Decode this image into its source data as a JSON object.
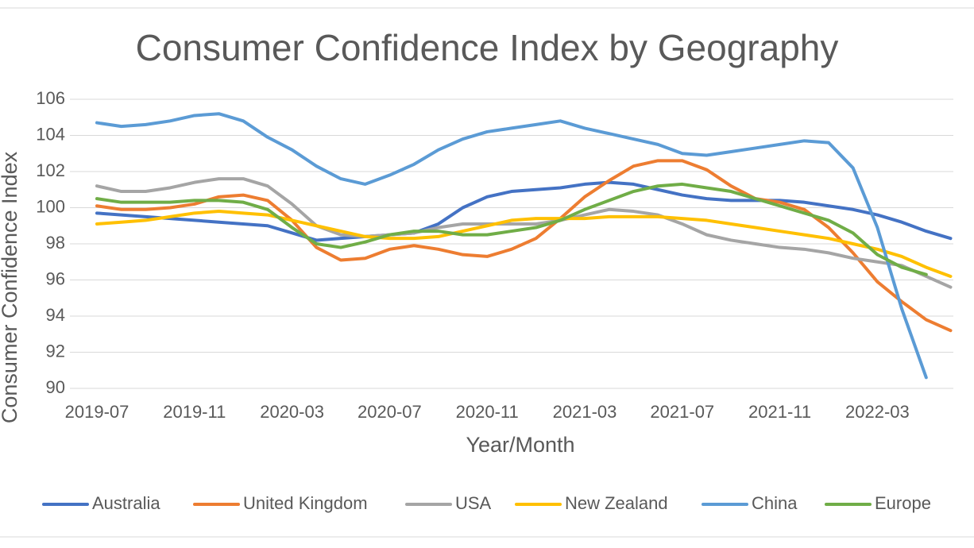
{
  "chart_data": {
    "type": "line",
    "title": "Consumer Confidence Index by Geography",
    "x_label": "Year/Month",
    "y_label": "Consumer Confidence Index",
    "categories": [
      "2019-07",
      null,
      null,
      null,
      "2019-11",
      null,
      null,
      null,
      "2020-03",
      null,
      null,
      null,
      "2020-07",
      null,
      null,
      null,
      "2020-11",
      null,
      null,
      null,
      "2021-03",
      null,
      null,
      null,
      "2021-07",
      null,
      null,
      null,
      "2021-11",
      null,
      null,
      null,
      "2022-03",
      null,
      null,
      null
    ],
    "ylim": [
      90,
      106
    ],
    "yticks": [
      90,
      92,
      94,
      96,
      98,
      100,
      102,
      104,
      106
    ],
    "grid": true,
    "legend": "bottom",
    "series": [
      {
        "name": "Australia",
        "color": "#4472c4",
        "values": [
          99.7,
          99.6,
          99.5,
          99.4,
          99.3,
          99.2,
          99.1,
          99.0,
          98.6,
          98.2,
          98.3,
          98.4,
          98.5,
          98.6,
          99.1,
          100.0,
          100.6,
          100.9,
          101.0,
          101.1,
          101.3,
          101.4,
          101.3,
          101.0,
          100.7,
          100.5,
          100.4,
          100.4,
          100.4,
          100.3,
          100.1,
          99.9,
          99.6,
          99.2,
          98.7,
          98.3
        ]
      },
      {
        "name": "United Kingdom",
        "color": "#ed7d31",
        "values": [
          100.1,
          99.9,
          99.9,
          100.0,
          100.2,
          100.6,
          100.7,
          100.4,
          99.3,
          97.8,
          97.1,
          97.2,
          97.7,
          97.9,
          97.7,
          97.4,
          97.3,
          97.7,
          98.3,
          99.4,
          100.6,
          101.5,
          102.3,
          102.6,
          102.6,
          102.1,
          101.2,
          100.5,
          100.3,
          99.9,
          98.9,
          97.5,
          95.9,
          94.8,
          93.8,
          93.2
        ]
      },
      {
        "name": "USA",
        "color": "#a5a5a5",
        "values": [
          101.2,
          100.9,
          100.9,
          101.1,
          101.4,
          101.6,
          101.6,
          101.2,
          100.2,
          99.0,
          98.5,
          98.4,
          98.5,
          98.6,
          98.9,
          99.1,
          99.1,
          99.1,
          99.1,
          99.3,
          99.6,
          99.9,
          99.8,
          99.6,
          99.1,
          98.5,
          98.2,
          98.0,
          97.8,
          97.7,
          97.5,
          97.2,
          97.0,
          96.8,
          96.2,
          95.6
        ]
      },
      {
        "name": "New Zealand",
        "color": "#ffc000",
        "values": [
          99.1,
          99.2,
          99.3,
          99.5,
          99.7,
          99.8,
          99.7,
          99.6,
          99.3,
          99.0,
          98.7,
          98.4,
          98.3,
          98.3,
          98.4,
          98.7,
          99.0,
          99.3,
          99.4,
          99.4,
          99.4,
          99.5,
          99.5,
          99.5,
          99.4,
          99.3,
          99.1,
          98.9,
          98.7,
          98.5,
          98.3,
          98.0,
          97.7,
          97.3,
          96.7,
          96.2
        ]
      },
      {
        "name": "China",
        "color": "#5b9bd5",
        "values": [
          104.7,
          104.5,
          104.6,
          104.8,
          105.1,
          105.2,
          104.8,
          103.9,
          103.2,
          102.3,
          101.6,
          101.3,
          101.8,
          102.4,
          103.2,
          103.8,
          104.2,
          104.4,
          104.6,
          104.8,
          104.4,
          104.1,
          103.8,
          103.5,
          103.0,
          102.9,
          103.1,
          103.3,
          103.5,
          103.7,
          103.6,
          102.2,
          98.9,
          94.4,
          90.6,
          null
        ]
      },
      {
        "name": "Europe",
        "color": "#70ad47",
        "values": [
          100.5,
          100.3,
          100.3,
          100.3,
          100.4,
          100.4,
          100.3,
          99.9,
          98.9,
          98.0,
          97.8,
          98.1,
          98.5,
          98.7,
          98.7,
          98.5,
          98.5,
          98.7,
          98.9,
          99.3,
          99.9,
          100.4,
          100.9,
          101.2,
          101.3,
          101.1,
          100.9,
          100.5,
          100.1,
          99.7,
          99.3,
          98.6,
          97.4,
          96.7,
          96.3,
          null
        ]
      }
    ]
  }
}
